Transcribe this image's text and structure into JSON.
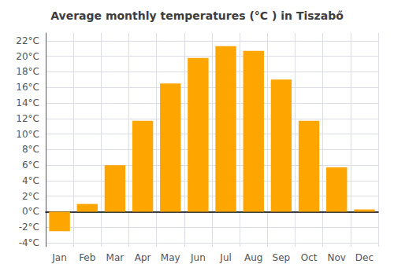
{
  "chart_data": {
    "type": "bar",
    "title": "Average monthly temperatures (°C ) in Tiszabő",
    "categories": [
      "Jan",
      "Feb",
      "Mar",
      "Apr",
      "May",
      "Jun",
      "Jul",
      "Aug",
      "Sep",
      "Oct",
      "Nov",
      "Dec"
    ],
    "values": [
      -2.5,
      1.0,
      6.0,
      11.7,
      16.5,
      19.8,
      21.3,
      20.7,
      17.0,
      11.7,
      5.7,
      0.3
    ],
    "color": "#FFA500",
    "ylim": [
      -4.5,
      23
    ],
    "yticks": [
      {
        "value": -4,
        "label": "-4°C"
      },
      {
        "value": -2,
        "label": "-2°C"
      },
      {
        "value": 0,
        "label": "0°C"
      },
      {
        "value": 2,
        "label": "2°C"
      },
      {
        "value": 4,
        "label": "4°C"
      },
      {
        "value": 6,
        "label": "6°C"
      },
      {
        "value": 8,
        "label": "8°C"
      },
      {
        "value": 10,
        "label": "10°C"
      },
      {
        "value": 12,
        "label": "12°C"
      },
      {
        "value": 14,
        "label": "14°C"
      },
      {
        "value": 16,
        "label": "16°C"
      },
      {
        "value": 18,
        "label": "18°C"
      },
      {
        "value": 20,
        "label": "20°C"
      },
      {
        "value": 22,
        "label": "22°C"
      }
    ],
    "grid": true
  }
}
